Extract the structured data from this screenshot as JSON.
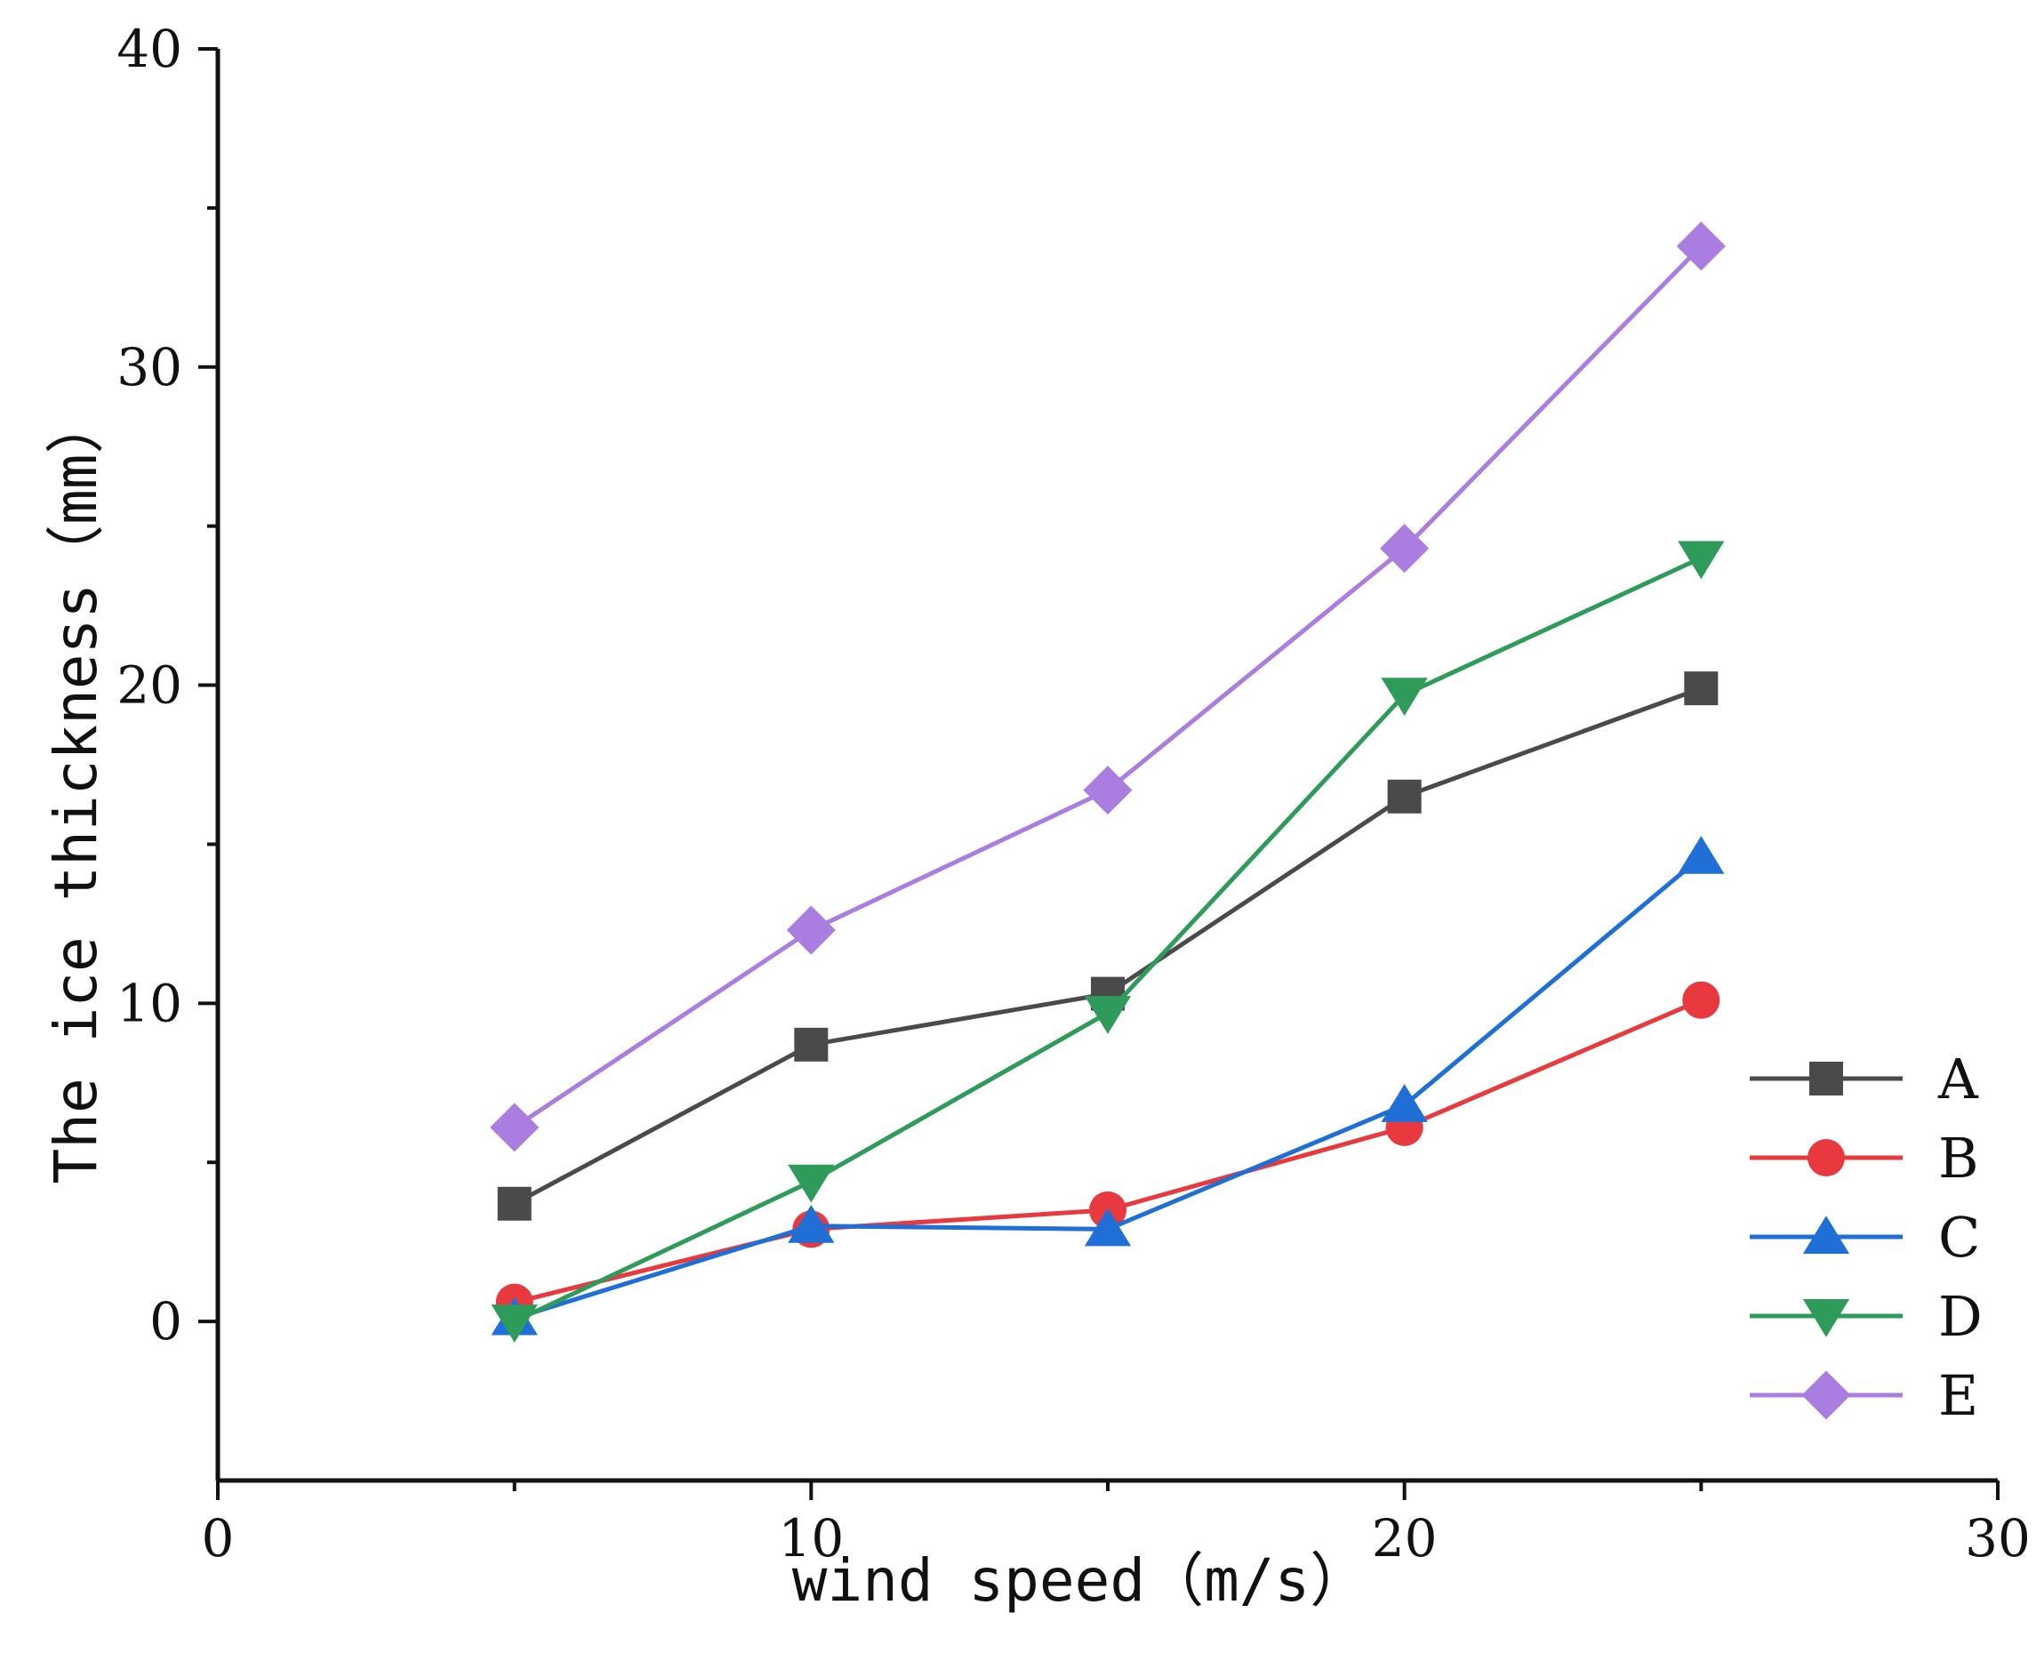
{
  "chart_data": {
    "type": "line",
    "title": "",
    "xlabel": "wind speed（m/s）",
    "ylabel": "The ice thickness（mm）",
    "xlim": [
      0,
      30
    ],
    "ylim": [
      -5,
      40
    ],
    "xticks": [
      0,
      10,
      20,
      30
    ],
    "xtick_labels": [
      "0",
      "10",
      "20",
      "30"
    ],
    "yticks": [
      0,
      10,
      20,
      30,
      40
    ],
    "ytick_labels": [
      "0",
      "10",
      "20",
      "30",
      "40"
    ],
    "x": [
      5,
      10,
      15,
      20,
      25
    ],
    "grid": false,
    "legend_position": "bottom-right",
    "series": [
      {
        "name": "A",
        "marker": "square",
        "color": "#4a4a4a",
        "values": [
          3.7,
          8.7,
          10.3,
          16.5,
          19.9
        ]
      },
      {
        "name": "B",
        "marker": "circle",
        "color": "#e8393e",
        "values": [
          0.6,
          2.9,
          3.5,
          6.1,
          10.1
        ]
      },
      {
        "name": "C",
        "marker": "triangle-up",
        "color": "#1f6fd6",
        "values": [
          0.1,
          3.0,
          2.9,
          6.8,
          14.6
        ]
      },
      {
        "name": "D",
        "marker": "triangle-down",
        "color": "#2e9b5a",
        "values": [
          0.0,
          4.4,
          9.7,
          19.7,
          24.0
        ]
      },
      {
        "name": "E",
        "marker": "diamond",
        "color": "#a97ee0",
        "values": [
          6.1,
          12.3,
          16.7,
          24.3,
          33.8
        ]
      }
    ]
  }
}
